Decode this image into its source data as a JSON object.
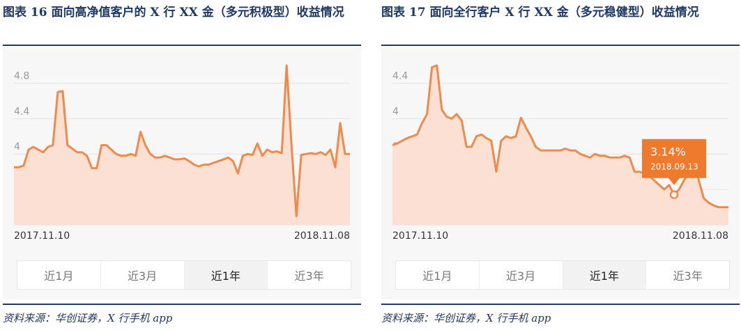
{
  "charts": [
    {
      "title": "图表 16 面向高净值客户的 X 行 XX 金（多元积极型）收益情况",
      "source": "资料来源：华创证券，X 行手机 app",
      "tabs": [
        "近1月",
        "近3月",
        "近1年",
        "近3年"
      ],
      "active_tab": 2
    },
    {
      "title": "图表 17 面向全行客户 X 行 XX 金（多元稳健型）收益情况",
      "source": "资料来源：华创证券，X 行手机 app",
      "tabs": [
        "近1月",
        "近3月",
        "近1年",
        "近3年"
      ],
      "active_tab": 2,
      "tooltip": {
        "value": "3.14%",
        "date": "2018.09.13"
      }
    }
  ],
  "chart_data": [
    {
      "type": "area",
      "title": "",
      "x_start_label": "2017.11.10",
      "x_end_label": "2018.11.08",
      "ylim": [
        3.2,
        5.0
      ],
      "y_ticks": [
        "4.8",
        "4.4",
        "4",
        "3.6",
        "3.2"
      ],
      "grid": true,
      "color": "#ee8a4a",
      "fill": "#fbe0d3",
      "series": [
        {
          "values": [
            3.85,
            3.85,
            3.87,
            4.05,
            4.08,
            4.05,
            4.02,
            4.08,
            4.1,
            4.7,
            4.71,
            4.1,
            4.06,
            4.02,
            4.02,
            3.98,
            3.84,
            3.84,
            4.1,
            4.1,
            4.05,
            4.0,
            3.98,
            3.98,
            4.0,
            3.98,
            4.25,
            4.1,
            4.0,
            3.96,
            3.96,
            3.98,
            3.96,
            3.94,
            3.94,
            3.95,
            3.92,
            3.88,
            3.86,
            3.88,
            3.88,
            3.9,
            3.92,
            3.94,
            3.96,
            3.92,
            3.78,
            3.98,
            4.0,
            3.99,
            4.12,
            3.98,
            4.05,
            4.02,
            4.03,
            4.01,
            5.0,
            4.1,
            3.3,
            3.99,
            4.0,
            4.01,
            4.0,
            4.02,
            3.99,
            4.05,
            3.85,
            4.35,
            4.0,
            4.0
          ]
        }
      ]
    },
    {
      "type": "area",
      "title": "",
      "x_start_label": "2017.11.10",
      "x_end_label": "2018.11.08",
      "ylim": [
        2.8,
        4.6
      ],
      "y_ticks": [
        "4.4",
        "4",
        "3.6",
        "3.2",
        "2.8"
      ],
      "grid": true,
      "color": "#ee8a4a",
      "fill": "#fbe0d3",
      "series": [
        {
          "values": [
            3.7,
            3.72,
            3.75,
            3.78,
            3.8,
            3.82,
            3.95,
            4.05,
            4.58,
            4.6,
            4.1,
            4.02,
            4.0,
            4.05,
            3.98,
            3.68,
            3.68,
            3.8,
            3.82,
            3.78,
            3.75,
            3.4,
            3.75,
            3.8,
            3.78,
            3.8,
            4.01,
            3.9,
            3.8,
            3.68,
            3.64,
            3.64,
            3.64,
            3.64,
            3.64,
            3.66,
            3.64,
            3.64,
            3.6,
            3.58,
            3.56,
            3.6,
            3.58,
            3.58,
            3.56,
            3.56,
            3.56,
            3.58,
            3.56,
            3.4,
            3.4,
            3.38,
            3.35,
            3.3,
            3.25,
            3.2,
            3.25,
            3.14,
            3.2,
            3.3,
            3.4,
            3.56,
            3.3,
            3.1,
            3.05,
            3.02,
            3.0,
            3.0,
            3.0
          ]
        }
      ],
      "highlight_index": 57
    }
  ]
}
